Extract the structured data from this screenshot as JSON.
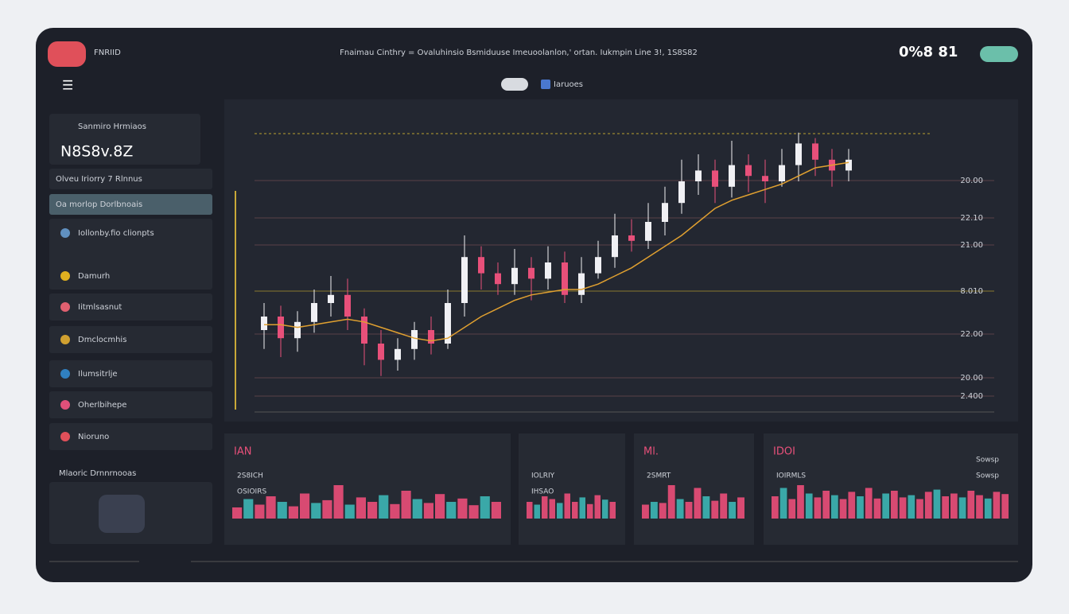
{
  "header": {
    "logo": "FNRIID",
    "title": "Fnaimau Cinthry = Ovaluhinsio Bsmiduuse Imeuoolanlon,' ortan. Iukmpin Line 3!, 1S8S82",
    "status": "0%8 81"
  },
  "toolbar": {
    "tab": "Iaruoes"
  },
  "sidebar": {
    "card_label": "Sanmiro Hrmiaos",
    "card_value": "N8S8v.8Z",
    "items": [
      "Olveu Iriorry 7 Rlnnus",
      "Oa morlop Dorlbnoais",
      "Iollonby.fio clionpts",
      "Damurh",
      "Iitmlsasnut",
      "Dmclocmhis",
      "Ilumsitrlje",
      "Oherlbihepe",
      "Nioruno"
    ],
    "section": "Mlaoric Drnnrnooas"
  },
  "price_chart": {
    "axis_labels": [
      "20.00",
      "22.10",
      "21.00",
      "8.010",
      "22.00",
      "20.00",
      "2.400"
    ],
    "candles": [
      [
        25,
        30,
        35,
        18
      ],
      [
        30,
        22,
        34,
        15
      ],
      [
        22,
        28,
        32,
        17
      ],
      [
        28,
        35,
        40,
        24
      ],
      [
        35,
        38,
        45,
        30
      ],
      [
        38,
        30,
        44,
        25
      ],
      [
        30,
        20,
        33,
        12
      ],
      [
        20,
        14,
        25,
        8
      ],
      [
        14,
        18,
        22,
        10
      ],
      [
        18,
        25,
        28,
        14
      ],
      [
        25,
        20,
        30,
        16
      ],
      [
        20,
        35,
        40,
        18
      ],
      [
        35,
        52,
        60,
        30
      ],
      [
        52,
        46,
        56,
        40
      ],
      [
        46,
        42,
        50,
        38
      ],
      [
        42,
        48,
        55,
        38
      ],
      [
        48,
        44,
        52,
        36
      ],
      [
        44,
        50,
        56,
        40
      ],
      [
        50,
        38,
        54,
        35
      ],
      [
        38,
        46,
        52,
        35
      ],
      [
        46,
        52,
        58,
        44
      ],
      [
        52,
        60,
        68,
        48
      ],
      [
        60,
        58,
        66,
        54
      ],
      [
        58,
        65,
        72,
        55
      ],
      [
        65,
        72,
        78,
        60
      ],
      [
        72,
        80,
        88,
        68
      ],
      [
        80,
        84,
        90,
        75
      ],
      [
        84,
        78,
        88,
        72
      ],
      [
        78,
        86,
        95,
        74
      ],
      [
        86,
        82,
        90,
        76
      ],
      [
        82,
        80,
        88,
        72
      ],
      [
        80,
        86,
        92,
        78
      ],
      [
        86,
        94,
        98,
        80
      ],
      [
        94,
        88,
        96,
        82
      ],
      [
        88,
        84,
        92,
        78
      ],
      [
        84,
        88,
        92,
        80
      ]
    ],
    "ma": [
      27,
      27,
      26,
      27,
      28,
      29,
      28,
      26,
      24,
      22,
      21,
      22,
      26,
      30,
      33,
      36,
      38,
      39,
      40,
      40,
      42,
      45,
      48,
      52,
      56,
      60,
      65,
      70,
      73,
      75,
      77,
      79,
      82,
      85,
      86,
      87
    ]
  },
  "panels": [
    {
      "title": "IAN",
      "labels": [
        "2S8ICH",
        "OSIOIRS"
      ],
      "volumes": [
        20,
        35,
        25,
        40,
        30,
        22,
        45,
        28,
        33,
        60,
        25,
        38,
        30,
        42,
        26,
        50,
        35,
        28,
        44,
        30,
        36,
        24,
        40,
        30
      ]
    },
    {
      "title": "",
      "labels": [
        "IOLRIY",
        "IHSAO"
      ],
      "volumes": [
        30,
        25,
        40,
        35,
        28,
        45,
        30,
        38,
        26,
        42,
        34,
        30
      ]
    },
    {
      "title": "Ml.",
      "labels": [
        "2SMRT"
      ],
      "volumes": [
        25,
        30,
        28,
        60,
        35,
        30,
        55,
        40,
        32,
        45,
        30,
        38
      ]
    },
    {
      "title": "IDOI",
      "labels": [
        "IOIRMLS",
        "Sowsp",
        "Sowsp"
      ],
      "volumes": [
        40,
        55,
        35,
        60,
        45,
        38,
        50,
        42,
        35,
        48,
        40,
        55,
        36,
        45,
        50,
        38,
        42,
        35,
        48,
        52,
        40,
        45,
        38,
        50,
        42,
        36,
        48,
        44
      ]
    }
  ]
}
